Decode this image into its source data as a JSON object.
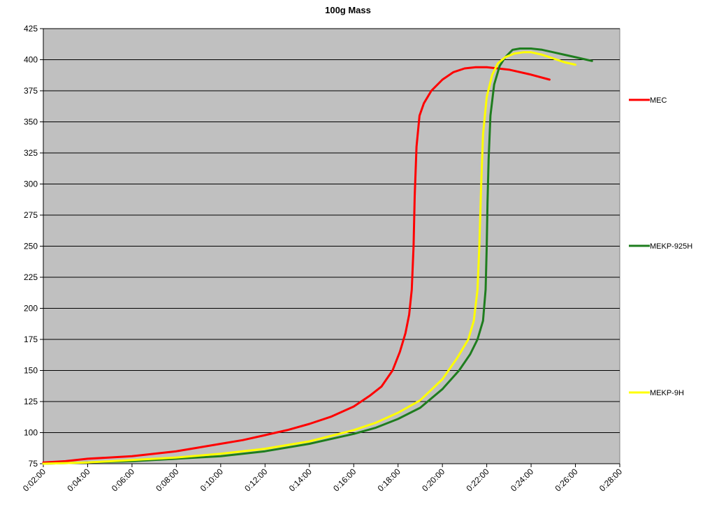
{
  "chart_data": {
    "type": "line",
    "title": "100g Mass",
    "xlabel": "",
    "ylabel": "",
    "x_unit": "h:mm:ss",
    "xlim": [
      "0:02:00",
      "0:28:00"
    ],
    "ylim": [
      75,
      425
    ],
    "y_ticks": [
      75,
      100,
      125,
      150,
      175,
      200,
      225,
      250,
      275,
      300,
      325,
      350,
      375,
      400,
      425
    ],
    "x_ticks": [
      "0:02:00",
      "0:04:00",
      "0:06:00",
      "0:08:00",
      "0:10:00",
      "0:12:00",
      "0:14:00",
      "0:16:00",
      "0:18:00",
      "0:20:00",
      "0:22:00",
      "0:24:00",
      "0:26:00",
      "0:28:00"
    ],
    "grid": "horizontal",
    "plot_background": "#c0c0c0",
    "legend_position": "right",
    "series": [
      {
        "name": "MEC",
        "color": "#ff0000",
        "points": [
          [
            "0:02:00",
            76
          ],
          [
            "0:03:00",
            77
          ],
          [
            "0:04:00",
            79
          ],
          [
            "0:05:00",
            80
          ],
          [
            "0:06:00",
            81
          ],
          [
            "0:07:00",
            83
          ],
          [
            "0:08:00",
            85
          ],
          [
            "0:09:00",
            88
          ],
          [
            "0:10:00",
            91
          ],
          [
            "0:11:00",
            94
          ],
          [
            "0:12:00",
            98
          ],
          [
            "0:13:00",
            102
          ],
          [
            "0:14:00",
            107
          ],
          [
            "0:15:00",
            113
          ],
          [
            "0:16:00",
            121
          ],
          [
            "0:16:45",
            130
          ],
          [
            "0:17:15",
            137
          ],
          [
            "0:17:45",
            150
          ],
          [
            "0:18:05",
            165
          ],
          [
            "0:18:20",
            180
          ],
          [
            "0:18:30",
            195
          ],
          [
            "0:18:37",
            215
          ],
          [
            "0:18:42",
            250
          ],
          [
            "0:18:45",
            290
          ],
          [
            "0:18:50",
            330
          ],
          [
            "0:18:58",
            355
          ],
          [
            "0:19:10",
            365
          ],
          [
            "0:19:30",
            375
          ],
          [
            "0:20:00",
            384
          ],
          [
            "0:20:30",
            390
          ],
          [
            "0:21:00",
            393
          ],
          [
            "0:21:30",
            394
          ],
          [
            "0:22:00",
            394
          ],
          [
            "0:23:00",
            392
          ],
          [
            "0:24:00",
            388
          ],
          [
            "0:24:50",
            384
          ]
        ]
      },
      {
        "name": "MEKP-925H",
        "color": "#1e7d1e",
        "points": [
          [
            "0:02:00",
            75
          ],
          [
            "0:04:00",
            76
          ],
          [
            "0:06:00",
            77
          ],
          [
            "0:08:00",
            79
          ],
          [
            "0:10:00",
            81
          ],
          [
            "0:12:00",
            85
          ],
          [
            "0:14:00",
            91
          ],
          [
            "0:16:00",
            99
          ],
          [
            "0:17:00",
            104
          ],
          [
            "0:18:00",
            111
          ],
          [
            "0:19:00",
            120
          ],
          [
            "0:20:00",
            135
          ],
          [
            "0:20:45",
            150
          ],
          [
            "0:21:15",
            163
          ],
          [
            "0:21:35",
            175
          ],
          [
            "0:21:50",
            190
          ],
          [
            "0:21:57",
            215
          ],
          [
            "0:22:00",
            250
          ],
          [
            "0:22:02",
            285
          ],
          [
            "0:22:05",
            320
          ],
          [
            "0:22:10",
            355
          ],
          [
            "0:22:20",
            380
          ],
          [
            "0:22:35",
            395
          ],
          [
            "0:22:50",
            402
          ],
          [
            "0:23:10",
            408
          ],
          [
            "0:23:30",
            409
          ],
          [
            "0:24:00",
            409
          ],
          [
            "0:24:30",
            408
          ],
          [
            "0:25:00",
            406
          ],
          [
            "0:25:30",
            404
          ],
          [
            "0:26:00",
            402
          ],
          [
            "0:26:30",
            400
          ],
          [
            "0:26:45",
            399
          ]
        ]
      },
      {
        "name": "MEKP-9H",
        "color": "#ffff00",
        "points": [
          [
            "0:02:00",
            75
          ],
          [
            "0:04:00",
            76
          ],
          [
            "0:06:00",
            78
          ],
          [
            "0:08:00",
            80
          ],
          [
            "0:10:00",
            83
          ],
          [
            "0:12:00",
            87
          ],
          [
            "0:14:00",
            93
          ],
          [
            "0:16:00",
            102
          ],
          [
            "0:17:00",
            108
          ],
          [
            "0:18:00",
            116
          ],
          [
            "0:19:00",
            126
          ],
          [
            "0:20:00",
            143
          ],
          [
            "0:20:40",
            160
          ],
          [
            "0:21:10",
            175
          ],
          [
            "0:21:25",
            190
          ],
          [
            "0:21:35",
            215
          ],
          [
            "0:21:40",
            250
          ],
          [
            "0:21:45",
            300
          ],
          [
            "0:21:50",
            340
          ],
          [
            "0:22:00",
            370
          ],
          [
            "0:22:15",
            388
          ],
          [
            "0:22:30",
            397
          ],
          [
            "0:22:50",
            402
          ],
          [
            "0:23:15",
            405
          ],
          [
            "0:23:40",
            406
          ],
          [
            "0:24:00",
            406
          ],
          [
            "0:24:30",
            404
          ],
          [
            "0:25:00",
            401
          ],
          [
            "0:25:30",
            398
          ],
          [
            "0:26:00",
            396
          ]
        ]
      }
    ]
  }
}
